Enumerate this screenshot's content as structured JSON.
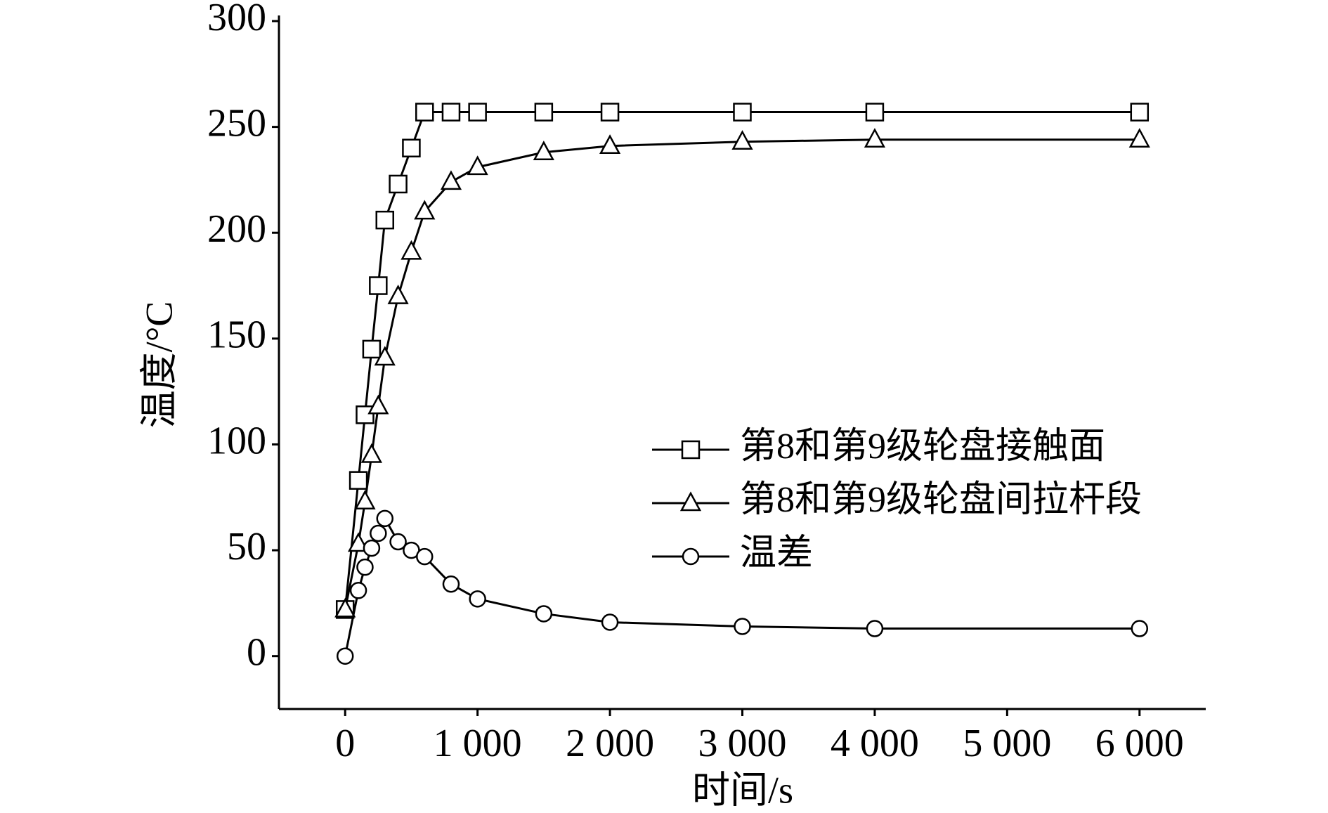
{
  "chart_data": {
    "type": "line",
    "xlabel": "时间/s",
    "ylabel": "温度/°C",
    "x": [
      0,
      100,
      150,
      200,
      250,
      300,
      400,
      500,
      600,
      800,
      1000,
      1500,
      2000,
      3000,
      4000,
      6000
    ],
    "series": [
      {
        "name": "第8和第9级轮盘接触面",
        "color": "#000000",
        "marker": "square",
        "values": [
          22,
          83,
          114,
          145,
          175,
          206,
          223,
          240,
          257,
          257,
          257,
          257,
          257,
          257,
          257,
          257
        ]
      },
      {
        "name": "第8和第9级轮盘间拉杆段",
        "color": "#000000",
        "marker": "triangle",
        "values": [
          22,
          53,
          73,
          95,
          118,
          141,
          170,
          191,
          210,
          224,
          231,
          238,
          241,
          243,
          244,
          244
        ]
      },
      {
        "name": "温差",
        "color": "#000000",
        "marker": "circle",
        "values": [
          0,
          31,
          42,
          51,
          58,
          65,
          54,
          50,
          47,
          34,
          27,
          20,
          16,
          14,
          13,
          13
        ]
      }
    ],
    "xlim": [
      -500,
      6500
    ],
    "xticks": [
      0,
      {
        "value": 1000,
        "label": "1 000"
      },
      {
        "value": 2000,
        "label": "2 000"
      },
      {
        "value": 3000,
        "label": "3 000"
      },
      {
        "value": 4000,
        "label": "4 000"
      },
      {
        "value": 5000,
        "label": "5 000"
      },
      {
        "value": 6000,
        "label": "6 000"
      }
    ],
    "ylim": [
      -25,
      300
    ],
    "yticks": [
      0,
      50,
      100,
      150,
      200,
      250,
      300
    ],
    "grid": false,
    "legend": "right"
  }
}
